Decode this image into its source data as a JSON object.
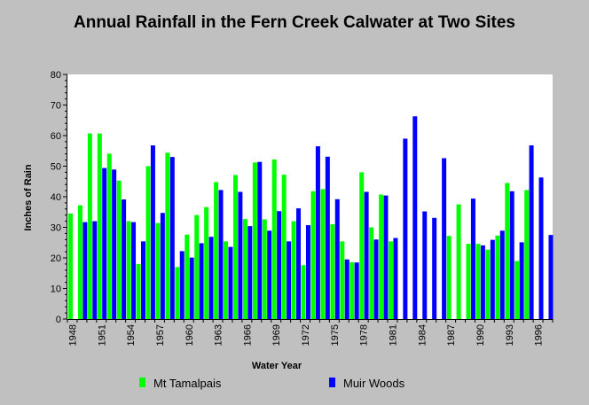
{
  "chart_data": {
    "type": "bar",
    "title": "Annual Rainfall in the Fern Creek Calwater at Two Sites",
    "xlabel": "Water Year",
    "ylabel": "Inches of Rain",
    "ylim": [
      0,
      80
    ],
    "yticks": [
      0,
      10,
      20,
      30,
      40,
      50,
      60,
      70,
      80
    ],
    "xticks": [
      "1948",
      "1951",
      "1954",
      "1957",
      "1960",
      "1963",
      "1966",
      "1969",
      "1972",
      "1975",
      "1978",
      "1981",
      "1984",
      "1987",
      "1990",
      "1993",
      "1996"
    ],
    "grid": false,
    "legend_position": "bottom",
    "categories": [
      "1948",
      "1949",
      "1950",
      "1951",
      "1952",
      "1953",
      "1954",
      "1955",
      "1956",
      "1957",
      "1958",
      "1959",
      "1960",
      "1961",
      "1962",
      "1963",
      "1964",
      "1965",
      "1966",
      "1967",
      "1968",
      "1969",
      "1970",
      "1971",
      "1972",
      "1973",
      "1974",
      "1975",
      "1976",
      "1977",
      "1978",
      "1979",
      "1980",
      "1981",
      "1982",
      "1983",
      "1984",
      "1985",
      "1986",
      "1987",
      "1988",
      "1989",
      "1990",
      "1991",
      "1992",
      "1993",
      "1994",
      "1995",
      "1996",
      "1997"
    ],
    "series": [
      {
        "name": "Mt Tamalpais",
        "color": "#00ff00",
        "values": [
          34.5,
          37.2,
          60.7,
          60.7,
          54.1,
          45.3,
          32.0,
          18.0,
          50.0,
          31.4,
          54.4,
          17.0,
          27.6,
          34.0,
          36.6,
          44.8,
          25.4,
          47.1,
          32.7,
          51.2,
          32.6,
          52.2,
          47.2,
          32.0,
          17.6,
          41.8,
          42.5,
          31.0,
          25.4,
          18.6,
          48.0,
          30.0,
          40.7,
          25.4,
          null,
          null,
          null,
          null,
          null,
          27.2,
          37.5,
          24.6,
          24.6,
          22.7,
          27.3,
          44.5,
          19.0,
          42.2,
          null,
          null
        ]
      },
      {
        "name": "Muir Woods",
        "color": "#0000ff",
        "values": [
          null,
          31.7,
          32.0,
          49.4,
          48.9,
          39.1,
          31.7,
          25.4,
          56.8,
          34.7,
          53.0,
          22.2,
          20.1,
          24.8,
          26.9,
          42.2,
          23.6,
          41.6,
          30.4,
          51.4,
          28.9,
          35.3,
          25.4,
          36.2,
          30.7,
          56.5,
          53.1,
          39.2,
          19.5,
          18.5,
          41.6,
          26.0,
          40.4,
          26.5,
          59.0,
          66.3,
          35.2,
          33.1,
          52.6,
          null,
          null,
          39.4,
          24.1,
          25.9,
          28.9,
          41.8,
          25.1,
          56.8,
          46.3,
          27.5
        ]
      }
    ]
  }
}
